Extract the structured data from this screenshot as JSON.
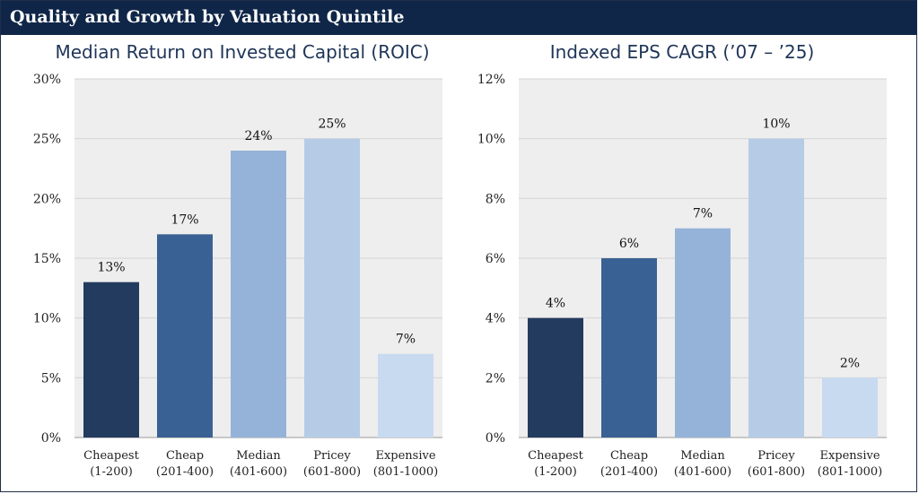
{
  "header": {
    "title": "Quality and Growth by Valuation Quintile"
  },
  "chart_data": [
    {
      "type": "bar",
      "title": "Median Return on Invested Capital (ROIC)",
      "xlabel": "",
      "ylabel": "",
      "categories": [
        "Cheapest",
        "Cheap",
        "Median",
        "Pricey",
        "Expensive"
      ],
      "category_ranges": [
        "(1-200)",
        "(201-400)",
        "(401-600)",
        "(601-800)",
        "(801-1000)"
      ],
      "values": [
        13,
        17,
        24,
        25,
        7
      ],
      "value_labels": [
        "13%",
        "17%",
        "24%",
        "25%",
        "7%"
      ],
      "ylim": [
        0,
        30
      ],
      "yticks": [
        0,
        5,
        10,
        15,
        20,
        25,
        30
      ],
      "ytick_labels": [
        "0%",
        "5%",
        "10%",
        "15%",
        "20%",
        "25%",
        "30%"
      ],
      "grid": true,
      "colors": [
        "#233b5e",
        "#3a6193",
        "#95b3d8",
        "#b6cce6",
        "#c8daf0"
      ]
    },
    {
      "type": "bar",
      "title": "Indexed EPS CAGR (’07 – ’25)",
      "xlabel": "",
      "ylabel": "",
      "categories": [
        "Cheapest",
        "Cheap",
        "Median",
        "Pricey",
        "Expensive"
      ],
      "category_ranges": [
        "(1-200)",
        "(201-400)",
        "(401-600)",
        "(601-800)",
        "(801-1000)"
      ],
      "values": [
        4,
        6,
        7,
        10,
        2
      ],
      "value_labels": [
        "4%",
        "6%",
        "7%",
        "10%",
        "2%"
      ],
      "ylim": [
        0,
        12
      ],
      "yticks": [
        0,
        2,
        4,
        6,
        8,
        10,
        12
      ],
      "ytick_labels": [
        "0%",
        "2%",
        "4%",
        "6%",
        "8%",
        "10%",
        "12%"
      ],
      "grid": true,
      "colors": [
        "#233b5e",
        "#3a6193",
        "#95b3d8",
        "#b6cce6",
        "#c8daf0"
      ]
    }
  ]
}
